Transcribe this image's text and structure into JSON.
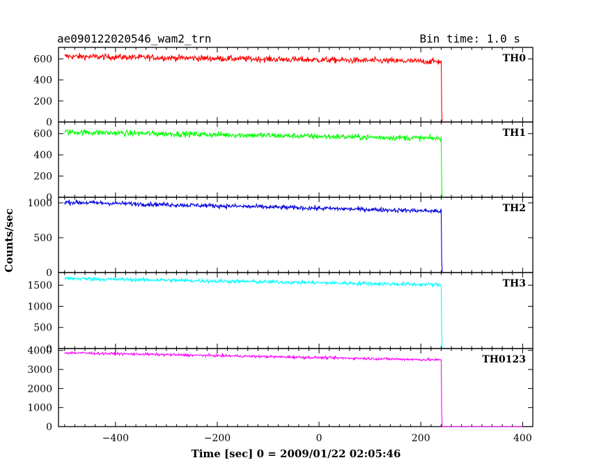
{
  "header": {
    "title": "ae090122020546_wam2_trn",
    "bin_time": "Bin time: 1.0 s"
  },
  "chart_data": {
    "type": "line",
    "xlabel": "Time [sec] 0 = 2009/01/22 02:05:46",
    "ylabel": "Counts/sec",
    "xlim": [
      -512,
      420
    ],
    "x_ticks": [
      -400,
      -200,
      0,
      200,
      400
    ],
    "x_tick_labels": [
      "−400",
      "−200",
      "0",
      "200",
      "400"
    ],
    "drop_time": 240,
    "end_time": 400,
    "start_time": -500,
    "panels": [
      {
        "name": "TH0",
        "color": "#ff0000",
        "ylim": [
          0,
          710
        ],
        "y_ticks": [
          0,
          200,
          400,
          600
        ],
        "start_level": 625,
        "pre_drop_level": 575,
        "noise": 28,
        "post_level": 0
      },
      {
        "name": "TH1",
        "color": "#00ff00",
        "ylim": [
          0,
          710
        ],
        "y_ticks": [
          0,
          200,
          400,
          600
        ],
        "start_level": 615,
        "pre_drop_level": 555,
        "noise": 26,
        "post_level": 0
      },
      {
        "name": "TH2",
        "color": "#0000dd",
        "ylim": [
          0,
          1080
        ],
        "y_ticks": [
          0,
          500,
          1000
        ],
        "start_level": 1010,
        "pre_drop_level": 880,
        "noise": 30,
        "post_level": 0
      },
      {
        "name": "TH3",
        "color": "#00ffff",
        "ylim": [
          0,
          1800
        ],
        "y_ticks": [
          0,
          500,
          1000,
          1500
        ],
        "start_level": 1660,
        "pre_drop_level": 1510,
        "noise": 45,
        "post_level": 0
      },
      {
        "name": "TH0123",
        "color": "#ff00ff",
        "ylim": [
          0,
          4100
        ],
        "y_ticks": [
          0,
          1000,
          2000,
          3000,
          4000
        ],
        "start_level": 3880,
        "pre_drop_level": 3500,
        "noise": 65,
        "post_level": 0
      }
    ]
  }
}
